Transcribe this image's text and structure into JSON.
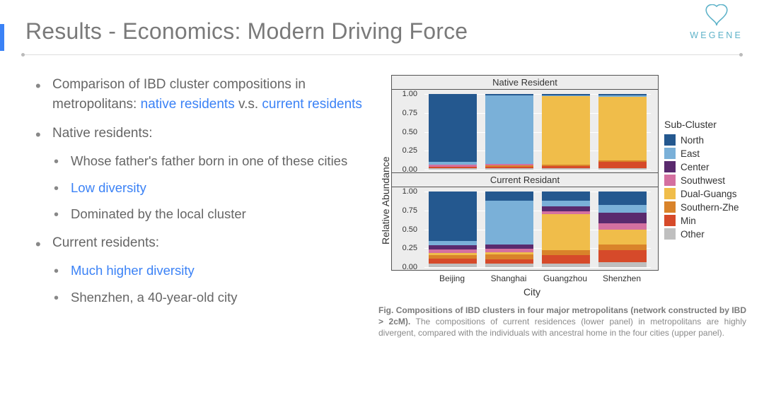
{
  "header": {
    "title": "Results - Economics: Modern Driving Force",
    "accent_color": "#3b82f6",
    "logo_text": "WEGENE",
    "logo_color": "#5fb3c9"
  },
  "bullets": {
    "b1_pre": "Comparison of IBD cluster compositions in metropolitans: ",
    "b1_h1": "native residents",
    "b1_mid": " v.s. ",
    "b1_h2": "current residents",
    "b2": "Native residents:",
    "b2a": "Whose father's father born in one of these cities",
    "b2b": "Low diversity",
    "b2c": "Dominated by the local cluster",
    "b3": "Current residents:",
    "b3a": "Much higher diversity",
    "b3b": "Shenzhen, a 40-year-old city"
  },
  "chart": {
    "ylabel": "Relative Abundance",
    "xlabel": "City",
    "yticks": [
      0.0,
      0.25,
      0.5,
      0.75,
      1.0
    ],
    "ytick_labels": [
      "0.00",
      "0.25",
      "0.50",
      "0.75",
      "1.00"
    ],
    "cities": [
      "Beijing",
      "Shanghai",
      "Guangzhou",
      "Shenzhen"
    ],
    "legend_title": "Sub-Cluster",
    "clusters": [
      "North",
      "East",
      "Center",
      "Southwest",
      "Dual-Guangs",
      "Southern-Zhe",
      "Min",
      "Other"
    ],
    "colors": {
      "North": "#24588f",
      "East": "#7ab0d8",
      "Center": "#5a2a6e",
      "Southwest": "#d470a0",
      "Dual-Guangs": "#f0bd4a",
      "Southern-Zhe": "#d9832a",
      "Min": "#d64a2a",
      "Other": "#bfbfbf"
    },
    "panels": [
      {
        "title": "Native Resident",
        "data": [
          {
            "North": 0.9,
            "East": 0.03,
            "Center": 0.0,
            "Southwest": 0.03,
            "Dual-Guangs": 0.0,
            "Southern-Zhe": 0.0,
            "Min": 0.02,
            "Other": 0.02
          },
          {
            "North": 0.02,
            "East": 0.9,
            "Center": 0.0,
            "Southwest": 0.02,
            "Dual-Guangs": 0.0,
            "Southern-Zhe": 0.02,
            "Min": 0.02,
            "Other": 0.02
          },
          {
            "North": 0.02,
            "East": 0.01,
            "Center": 0.0,
            "Southwest": 0.0,
            "Dual-Guangs": 0.9,
            "Southern-Zhe": 0.02,
            "Min": 0.03,
            "Other": 0.02
          },
          {
            "North": 0.02,
            "East": 0.02,
            "Center": 0.0,
            "Southwest": 0.0,
            "Dual-Guangs": 0.84,
            "Southern-Zhe": 0.02,
            "Min": 0.08,
            "Other": 0.02
          }
        ]
      },
      {
        "title": "Current Residant",
        "data": [
          {
            "North": 0.65,
            "East": 0.06,
            "Center": 0.06,
            "Southwest": 0.04,
            "Dual-Guangs": 0.03,
            "Southern-Zhe": 0.05,
            "Min": 0.06,
            "Other": 0.05
          },
          {
            "North": 0.12,
            "East": 0.58,
            "Center": 0.06,
            "Southwest": 0.04,
            "Dual-Guangs": 0.03,
            "Southern-Zhe": 0.07,
            "Min": 0.05,
            "Other": 0.05
          },
          {
            "North": 0.12,
            "East": 0.08,
            "Center": 0.06,
            "Southwest": 0.04,
            "Dual-Guangs": 0.48,
            "Southern-Zhe": 0.06,
            "Min": 0.11,
            "Other": 0.05
          },
          {
            "North": 0.18,
            "East": 0.1,
            "Center": 0.14,
            "Southwest": 0.08,
            "Dual-Guangs": 0.2,
            "Southern-Zhe": 0.08,
            "Min": 0.15,
            "Other": 0.07
          }
        ]
      }
    ],
    "background_color": "#ededed",
    "grid_color": "#ffffff",
    "border_color": "#555555",
    "label_fontsize": 14,
    "tick_fontsize": 11
  },
  "caption": {
    "bold": "Fig. Compositions of IBD clusters in four major metropolitans (network constructed by IBD > 2cM).",
    "rest": " The compositions of current residences (lower panel) in metropolitans are highly divergent, compared with the individuals with ancestral home in the four cities (upper panel)."
  }
}
